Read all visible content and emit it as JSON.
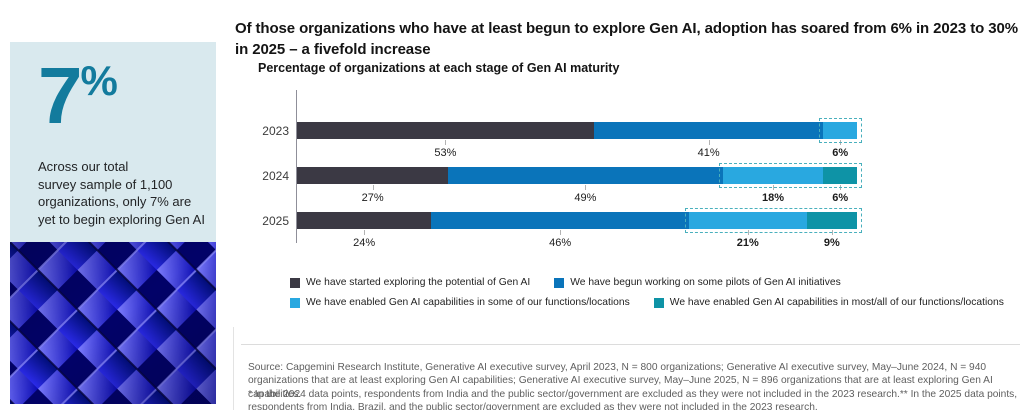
{
  "sidebar": {
    "big_value": "7",
    "big_unit": "%",
    "description": "Across our total\nsurvey sample of 1,100\norganizations, only 7% are\nyet to begin exploring Gen AI",
    "panel_bg": "#d9e9ee",
    "accent_color": "#137b9d"
  },
  "header": {
    "title": "Of those organizations who have at least begun to explore Gen AI,  adoption has soared from 6% in 2023 to 30% in 2025 – a fivefold increase"
  },
  "chart_data": {
    "type": "bar",
    "stacked": true,
    "orientation": "horizontal",
    "title": "Percentage of organizations at each stage of Gen AI maturity",
    "categories": [
      "2023",
      "2024",
      "2025"
    ],
    "series": [
      {
        "name": "We have started exploring the potential of Gen AI",
        "color": "#3b3944",
        "values": [
          53,
          27,
          24
        ]
      },
      {
        "name": "We have begun working on some pilots of Gen AI initiatives",
        "color": "#0a74ba",
        "values": [
          41,
          49,
          46
        ]
      },
      {
        "name": "We have enabled Gen AI capabilities in some of our functions/locations",
        "color": "#29a8e0",
        "values": [
          6,
          18,
          21
        ]
      },
      {
        "name": "We have enabled Gen AI capabilities in most/all of our functions/locations",
        "color": "#0e93a6",
        "values": [
          0,
          6,
          9
        ]
      }
    ],
    "value_suffix": "%",
    "xlim": [
      0,
      100
    ],
    "grid": false,
    "legend_position": "bottom",
    "highlight_from_series": 2,
    "highlight_border_color": "#49b0bd",
    "highlight_totals": {
      "2023": 6,
      "2024": 24,
      "2025": 30
    }
  },
  "footer": {
    "source": "Source: Capgemini Research Institute, Generative AI executive survey, April 2023, N = 800 organizations; Generative AI executive survey, May–June 2024, N = 940 organizations that are at least exploring Gen AI capabilities; Generative AI executive survey, May–June 2025, N = 896 organizations that are at least exploring Gen AI capabilities.",
    "note": "* In the 2024 data points, respondents from India and the public sector/government are excluded as they were not included in the 2023 research.** In the 2025 data points, respondents from India, Brazil, and the public sector/government are excluded as they were not included in the 2023 research."
  }
}
